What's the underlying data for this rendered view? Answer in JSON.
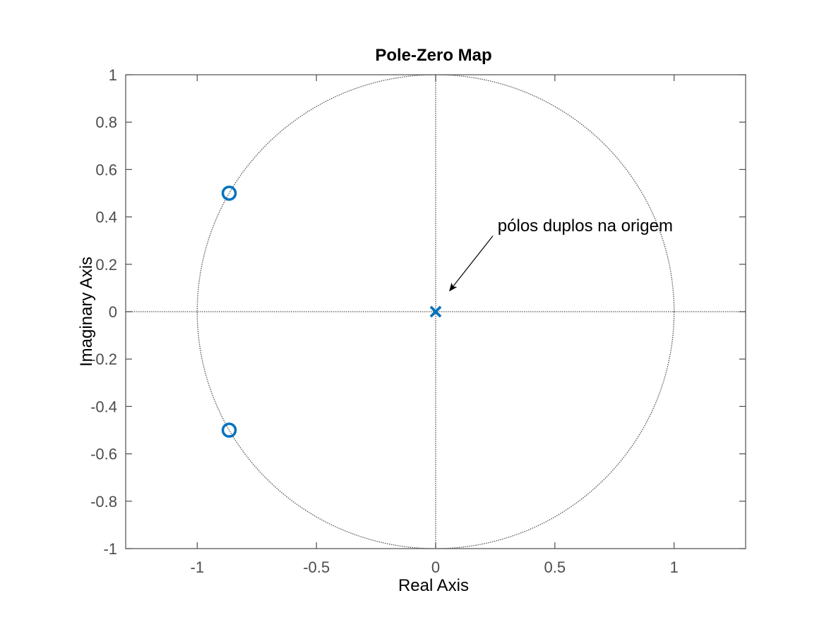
{
  "chart_data": {
    "type": "scatter",
    "title": "Pole-Zero Map",
    "xlabel": "Real Axis",
    "ylabel": "Imaginary Axis",
    "xlim": [
      -1.3,
      1.3
    ],
    "ylim": [
      -1,
      1
    ],
    "xticks": [
      -1,
      -0.5,
      0,
      0.5,
      1
    ],
    "xtick_labels": [
      "-1",
      "-0.5",
      "0",
      "0.5",
      "1"
    ],
    "yticks": [
      -1,
      -0.8,
      -0.6,
      -0.4,
      -0.2,
      0,
      0.2,
      0.4,
      0.6,
      0.8,
      1
    ],
    "ytick_labels": [
      "-1",
      "-0.8",
      "-0.6",
      "-0.4",
      "-0.2",
      "0",
      "0.2",
      "0.4",
      "0.6",
      "0.8",
      "1"
    ],
    "grid": false,
    "unit_circle": true,
    "poles": [
      {
        "x": 0,
        "y": 0
      },
      {
        "x": 0,
        "y": 0
      }
    ],
    "zeros": [
      {
        "x": -0.866,
        "y": 0.5
      },
      {
        "x": -0.866,
        "y": -0.5
      }
    ],
    "annotation": {
      "text": "pólos duplos na origem",
      "text_x": 0.26,
      "text_y": 0.34,
      "arrow_from": [
        0.24,
        0.32
      ],
      "arrow_to": [
        0.06,
        0.09
      ]
    },
    "colors": {
      "marker": "#0072BD",
      "axes": "#4d4d4d",
      "reference": "#555555"
    }
  }
}
